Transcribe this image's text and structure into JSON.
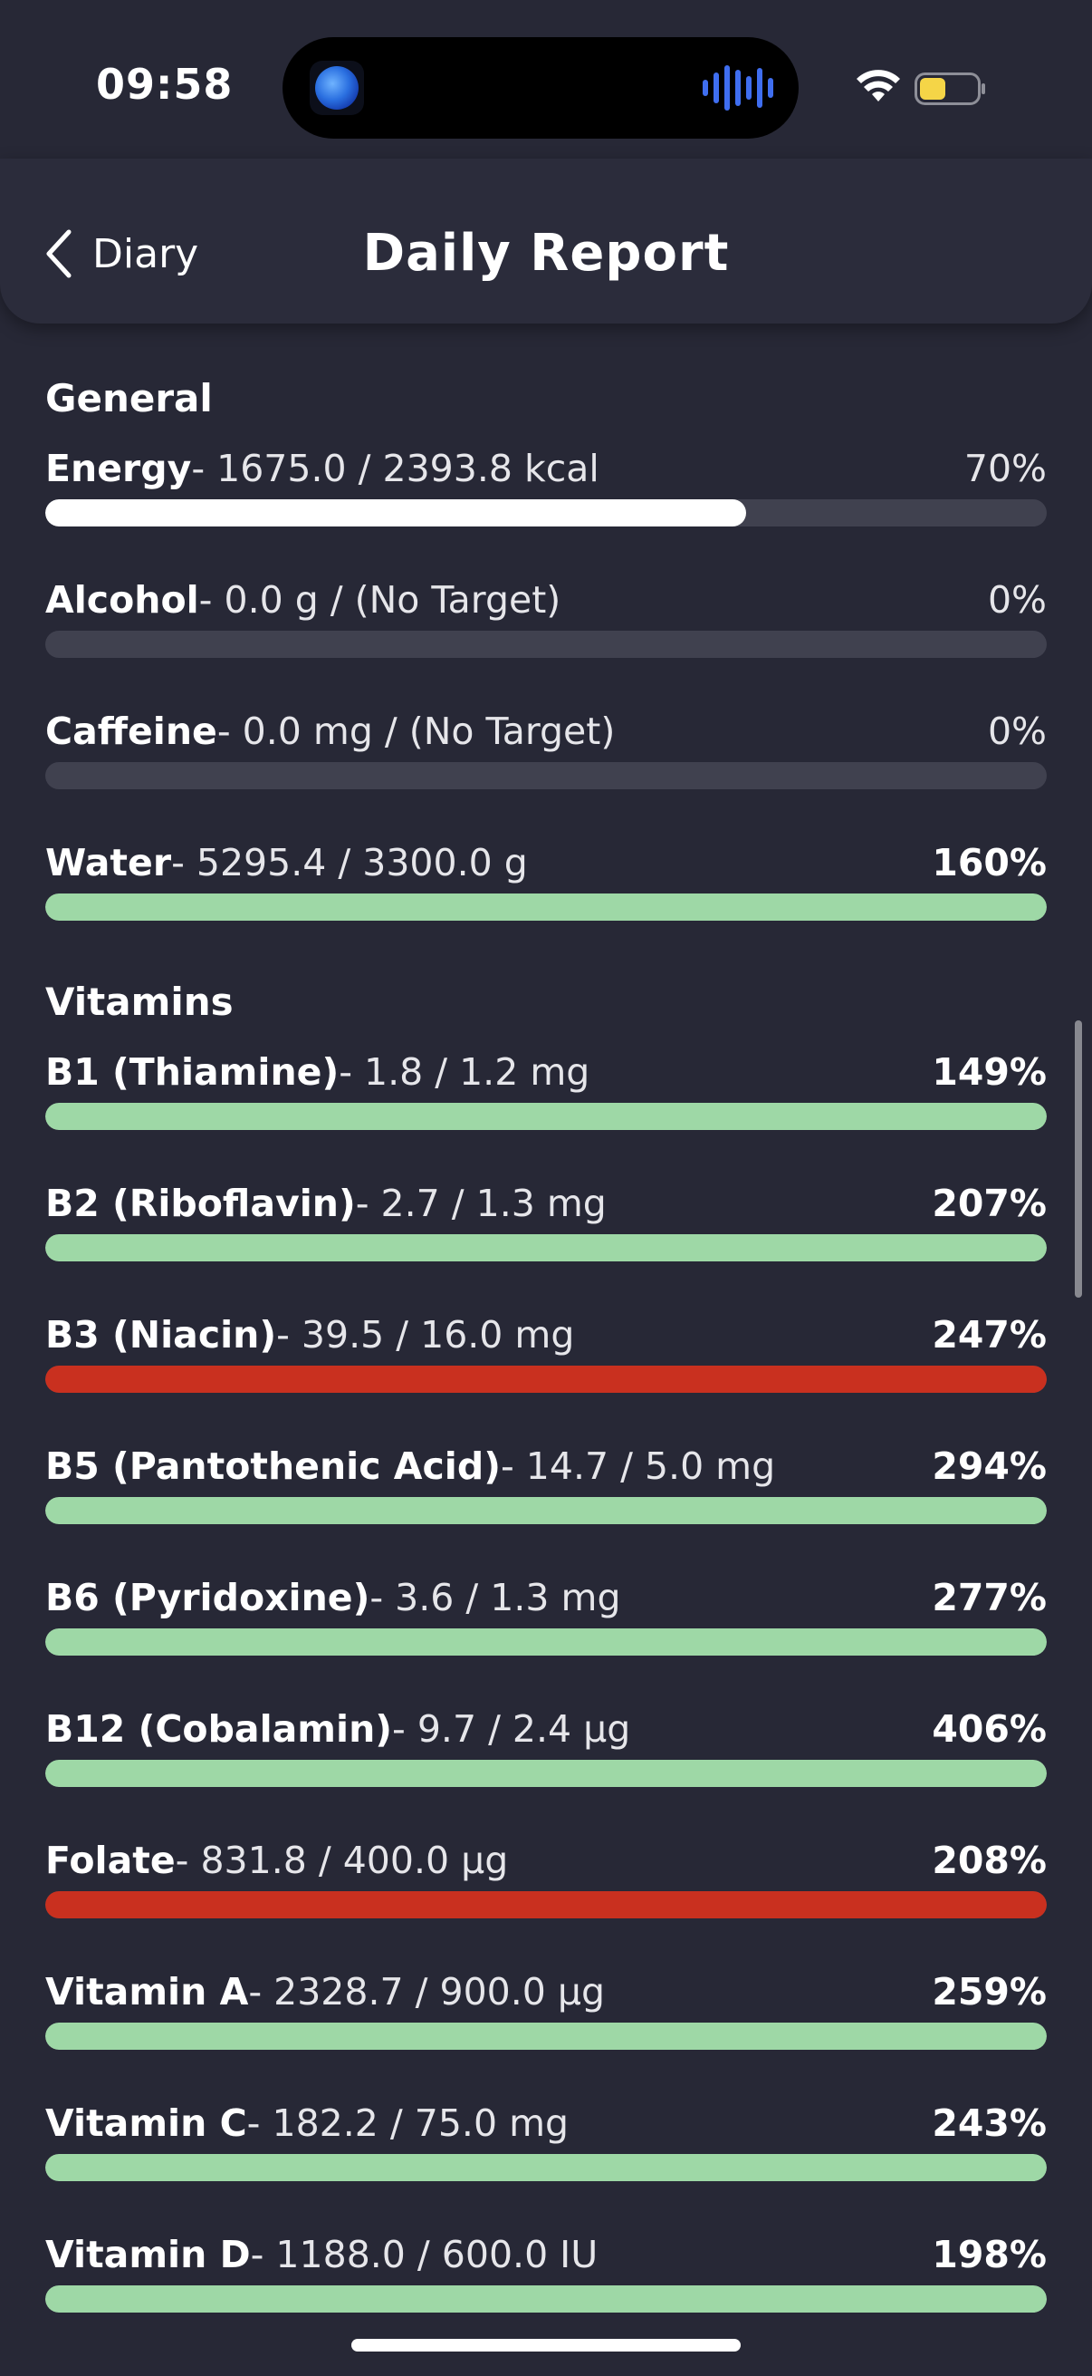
{
  "status": {
    "time": "09:58",
    "wifi_icon": "wifi-icon",
    "battery_icon": "battery-icon",
    "battery_color": "#F5D547"
  },
  "nav": {
    "back_label": "Diary",
    "title": "Daily Report"
  },
  "colors": {
    "background": "#272836",
    "track": "#40414F",
    "neutral_fill": "#FFFFFF",
    "good": "#9ED8A6",
    "over_limit": "#C9301F"
  },
  "sections": [
    {
      "title": "General",
      "items": [
        {
          "name": "Energy",
          "detail": "- 1675.0 / 2393.8 kcal",
          "percent": "70%",
          "fill": 0.7,
          "status": "neutral",
          "pct_weight": "light"
        },
        {
          "name": "Alcohol",
          "detail": "- 0.0 g / (No Target)",
          "percent": "0%",
          "fill": 0,
          "status": "neutral",
          "pct_weight": "light"
        },
        {
          "name": "Caffeine",
          "detail": "- 0.0 mg / (No Target)",
          "percent": "0%",
          "fill": 0,
          "status": "neutral",
          "pct_weight": "light"
        },
        {
          "name": "Water",
          "detail": "- 5295.4 / 3300.0 g",
          "percent": "160%",
          "fill": 1,
          "status": "good",
          "pct_weight": "strong"
        }
      ]
    },
    {
      "title": "Vitamins",
      "items": [
        {
          "name": "B1 (Thiamine)",
          "detail": "- 1.8 / 1.2 mg",
          "percent": "149%",
          "fill": 1,
          "status": "good",
          "pct_weight": "strong"
        },
        {
          "name": "B2 (Riboflavin)",
          "detail": "- 2.7 / 1.3 mg",
          "percent": "207%",
          "fill": 1,
          "status": "good",
          "pct_weight": "strong"
        },
        {
          "name": "B3 (Niacin)",
          "detail": "- 39.5 / 16.0 mg",
          "percent": "247%",
          "fill": 1,
          "status": "over_limit",
          "pct_weight": "strong"
        },
        {
          "name": "B5 (Pantothenic Acid)",
          "detail": "- 14.7 / 5.0 mg",
          "percent": "294%",
          "fill": 1,
          "status": "good",
          "pct_weight": "strong"
        },
        {
          "name": "B6 (Pyridoxine)",
          "detail": "- 3.6 / 1.3 mg",
          "percent": "277%",
          "fill": 1,
          "status": "good",
          "pct_weight": "strong"
        },
        {
          "name": "B12 (Cobalamin)",
          "detail": "- 9.7 / 2.4 µg",
          "percent": "406%",
          "fill": 1,
          "status": "good",
          "pct_weight": "strong"
        },
        {
          "name": "Folate",
          "detail": "- 831.8 / 400.0 µg",
          "percent": "208%",
          "fill": 1,
          "status": "over_limit",
          "pct_weight": "strong"
        },
        {
          "name": "Vitamin A",
          "detail": "- 2328.7 / 900.0 µg",
          "percent": "259%",
          "fill": 1,
          "status": "good",
          "pct_weight": "strong"
        },
        {
          "name": "Vitamin C",
          "detail": "- 182.2 / 75.0 mg",
          "percent": "243%",
          "fill": 1,
          "status": "good",
          "pct_weight": "strong"
        },
        {
          "name": "Vitamin D",
          "detail": "- 1188.0 / 600.0 IU",
          "percent": "198%",
          "fill": 1,
          "status": "good",
          "pct_weight": "strong"
        }
      ]
    }
  ]
}
